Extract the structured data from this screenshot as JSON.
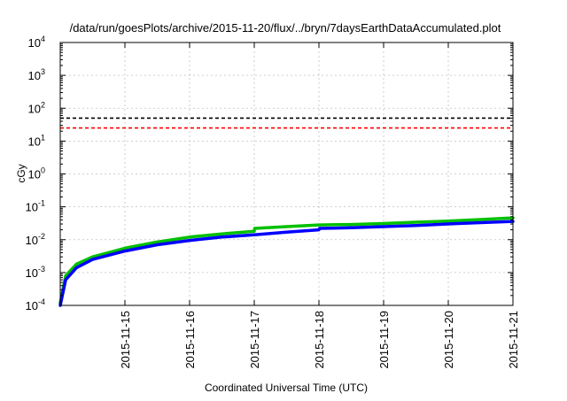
{
  "chart_data": {
    "type": "line",
    "title": "/data/run/goesPlots/archive/2015-11-20/flux/../bryn/7daysEarthDataAccumulated.plot",
    "xlabel": "Coordinated Universal Time (UTC)",
    "ylabel": "cGy",
    "y_scale": "log",
    "xlim": [
      "2015-11-14",
      "2015-11-21"
    ],
    "ylim": [
      0.0001,
      10000
    ],
    "grid": true,
    "legend": "none",
    "x_tick_labels": [
      "2015-11-15",
      "2015-11-16",
      "2015-11-17",
      "2015-11-18",
      "2015-11-19",
      "2015-11-20",
      "2015-11-21"
    ],
    "y_tick_labels": [
      {
        "base": "10",
        "exp": "-4",
        "value": 0.0001
      },
      {
        "base": "10",
        "exp": "-3",
        "value": 0.001
      },
      {
        "base": "10",
        "exp": "-2",
        "value": 0.01
      },
      {
        "base": "10",
        "exp": "-1",
        "value": 0.1
      },
      {
        "base": "10",
        "exp": "0",
        "value": 1
      },
      {
        "base": "10",
        "exp": "1",
        "value": 10
      },
      {
        "base": "10",
        "exp": "2",
        "value": 100
      },
      {
        "base": "10",
        "exp": "3",
        "value": 1000
      },
      {
        "base": "10",
        "exp": "4",
        "value": 10000
      }
    ],
    "reference_lines": [
      {
        "y": 50,
        "color": "#000000",
        "style": "dashed"
      },
      {
        "y": 25,
        "color": "#ff0000",
        "style": "dashed"
      }
    ],
    "series": [
      {
        "color": "#00c000",
        "points": [
          [
            "2015-11-14 00:00",
            0.00012
          ],
          [
            "2015-11-14 02:00",
            0.0008
          ],
          [
            "2015-11-14 06:00",
            0.0018
          ],
          [
            "2015-11-14 12:00",
            0.003
          ],
          [
            "2015-11-15 00:00",
            0.0055
          ],
          [
            "2015-11-15 12:00",
            0.0085
          ],
          [
            "2015-11-16 00:00",
            0.012
          ],
          [
            "2015-11-16 12:00",
            0.015
          ],
          [
            "2015-11-17 00:00",
            0.018
          ],
          [
            "2015-11-17 00:10",
            0.022
          ],
          [
            "2015-11-17 12:00",
            0.025
          ],
          [
            "2015-11-18 00:00",
            0.028
          ],
          [
            "2015-11-18 12:00",
            0.029
          ],
          [
            "2015-11-19 00:00",
            0.031
          ],
          [
            "2015-11-19 12:00",
            0.034
          ],
          [
            "2015-11-20 00:00",
            0.037
          ],
          [
            "2015-11-20 12:00",
            0.041
          ],
          [
            "2015-11-21 00:00",
            0.046
          ]
        ]
      },
      {
        "color": "#0000ff",
        "points": [
          [
            "2015-11-14 00:00",
            0.0001
          ],
          [
            "2015-11-14 02:00",
            0.0006
          ],
          [
            "2015-11-14 06:00",
            0.0014
          ],
          [
            "2015-11-14 12:00",
            0.0025
          ],
          [
            "2015-11-15 00:00",
            0.0045
          ],
          [
            "2015-11-15 12:00",
            0.007
          ],
          [
            "2015-11-16 00:00",
            0.0095
          ],
          [
            "2015-11-16 12:00",
            0.012
          ],
          [
            "2015-11-17 00:00",
            0.014
          ],
          [
            "2015-11-17 12:00",
            0.017
          ],
          [
            "2015-11-18 00:00",
            0.02
          ],
          [
            "2015-11-18 00:10",
            0.022
          ],
          [
            "2015-11-18 12:00",
            0.023
          ],
          [
            "2015-11-19 00:00",
            0.025
          ],
          [
            "2015-11-19 12:00",
            0.027
          ],
          [
            "2015-11-20 00:00",
            0.03
          ],
          [
            "2015-11-20 12:00",
            0.033
          ],
          [
            "2015-11-21 00:00",
            0.036
          ]
        ]
      }
    ]
  }
}
